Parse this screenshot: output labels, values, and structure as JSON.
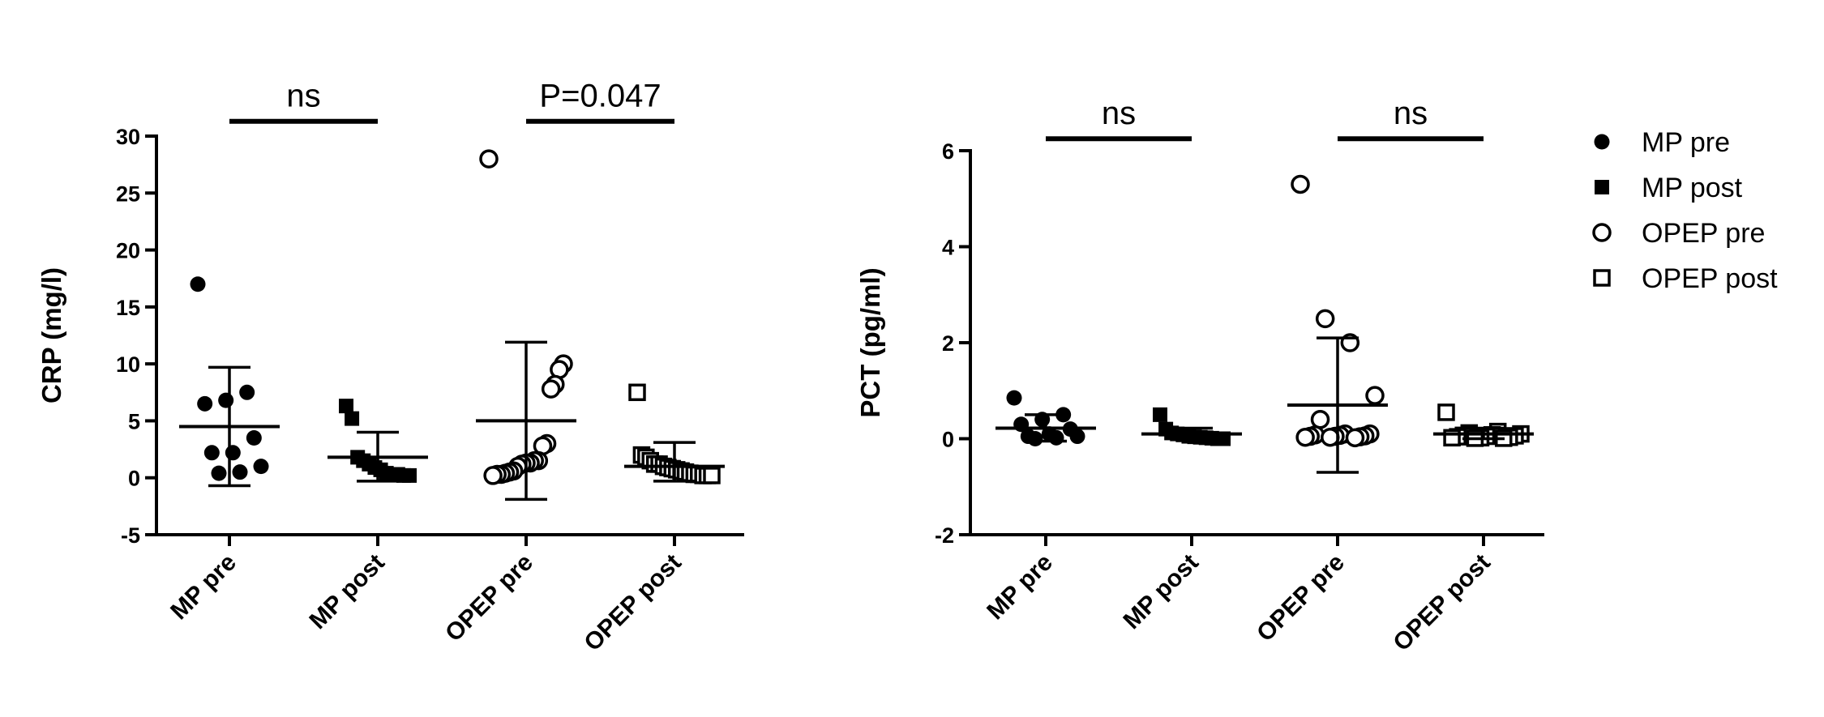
{
  "colors": {
    "ink": "#000000",
    "background": "#ffffff"
  },
  "legend": {
    "placement": "right",
    "items": [
      {
        "label": "MP pre",
        "marker": "filled-circle"
      },
      {
        "label": "MP post",
        "marker": "filled-square"
      },
      {
        "label": "OPEP pre",
        "marker": "open-circle"
      },
      {
        "label": "OPEP post",
        "marker": "open-square"
      }
    ]
  },
  "chart_data": [
    {
      "type": "scatter",
      "ylabel": "CRP (mg/l)",
      "ylim": [
        -5,
        30
      ],
      "yticks": [
        -5,
        0,
        5,
        10,
        15,
        20,
        25,
        30
      ],
      "categories": [
        "MP pre",
        "MP post",
        "OPEP pre",
        "OPEP post"
      ],
      "series": [
        {
          "name": "MP pre",
          "marker": "filled-circle",
          "mean": 4.5,
          "sd_low": -0.7,
          "sd_high": 9.7,
          "values": [
            17,
            7.5,
            6.8,
            6.5,
            3.5,
            2.2,
            2.2,
            1.0,
            0.5,
            0.4
          ]
        },
        {
          "name": "MP post",
          "marker": "filled-square",
          "mean": 1.8,
          "sd_low": -0.3,
          "sd_high": 4.0,
          "values": [
            6.3,
            5.2,
            1.8,
            1.5,
            1.2,
            0.9,
            0.7,
            0.4,
            0.3,
            0.3,
            0.2,
            0.2
          ]
        },
        {
          "name": "OPEP pre",
          "marker": "open-circle",
          "mean": 5.0,
          "sd_low": -1.9,
          "sd_high": 11.9,
          "values": [
            28,
            10,
            9.5,
            8.2,
            7.8,
            3.0,
            2.8,
            1.5,
            1.5,
            1.3,
            1.3,
            1.2,
            1.0,
            0.6,
            0.5,
            0.4,
            0.3,
            0.3,
            0.2
          ]
        },
        {
          "name": "OPEP post",
          "marker": "open-square",
          "mean": 1.0,
          "sd_low": -0.3,
          "sd_high": 3.1,
          "values": [
            7.5,
            2.0,
            1.8,
            1.5,
            1.2,
            1.2,
            1.0,
            0.9,
            0.8,
            0.7,
            0.6,
            0.5,
            0.4,
            0.3,
            0.3,
            0.2,
            0.2,
            0.2
          ]
        }
      ],
      "annotations": [
        {
          "text": "ns",
          "between": [
            "MP pre",
            "MP post"
          ],
          "y": 31.3
        },
        {
          "text": "P=0.047",
          "between": [
            "OPEP pre",
            "OPEP post"
          ],
          "y": 31.3
        }
      ]
    },
    {
      "type": "scatter",
      "ylabel": "PCT (pg/ml)",
      "ylim": [
        -2,
        6
      ],
      "yticks": [
        -2,
        0,
        2,
        4,
        6
      ],
      "categories": [
        "MP pre",
        "MP post",
        "OPEP pre",
        "OPEP post"
      ],
      "series": [
        {
          "name": "MP pre",
          "marker": "filled-circle",
          "mean": 0.22,
          "sd_low": -0.05,
          "sd_high": 0.5,
          "values": [
            0.85,
            0.5,
            0.4,
            0.3,
            0.2,
            0.1,
            0.05,
            0.05,
            0.02,
            0.0
          ]
        },
        {
          "name": "MP post",
          "marker": "filled-square",
          "mean": 0.1,
          "sd_low": 0.02,
          "sd_high": 0.22,
          "values": [
            0.5,
            0.2,
            0.12,
            0.1,
            0.08,
            0.05,
            0.04,
            0.03,
            0.02,
            0.01,
            0.0,
            0.0
          ]
        },
        {
          "name": "OPEP pre",
          "marker": "open-circle",
          "mean": 0.7,
          "sd_low": -0.7,
          "sd_high": 2.1,
          "values": [
            5.3,
            2.5,
            2.0,
            0.9,
            0.4,
            0.1,
            0.1,
            0.08,
            0.07,
            0.06,
            0.05,
            0.05,
            0.04,
            0.03,
            0.03,
            0.02
          ]
        },
        {
          "name": "OPEP post",
          "marker": "open-square",
          "mean": 0.1,
          "sd_low": 0.0,
          "sd_high": 0.22,
          "values": [
            0.55,
            0.15,
            0.12,
            0.1,
            0.08,
            0.07,
            0.06,
            0.05,
            0.04,
            0.03,
            0.02,
            0.02,
            0.01,
            0.01
          ]
        }
      ],
      "annotations": [
        {
          "text": "ns",
          "between": [
            "MP pre",
            "MP post"
          ],
          "y": 6.25
        },
        {
          "text": "ns",
          "between": [
            "OPEP pre",
            "OPEP post"
          ],
          "y": 6.25
        }
      ]
    }
  ]
}
